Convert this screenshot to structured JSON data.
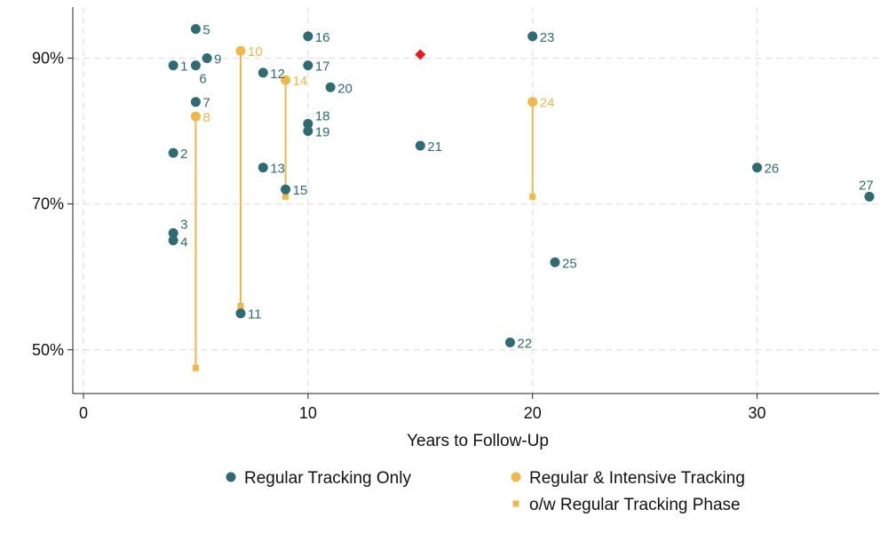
{
  "colors": {
    "regular": "#2f6b73",
    "intensive": "#f0b84a",
    "highlight": "#e8191b",
    "grid": "#e6e6e6",
    "axis": "#222222"
  },
  "chart_data": {
    "type": "scatter",
    "xlabel": "Years to Follow-Up",
    "ylabel": "",
    "xlim": [
      0,
      35
    ],
    "ylim": [
      44,
      97
    ],
    "x_ticks": [
      0,
      10,
      20,
      30
    ],
    "y_ticks": [
      50,
      70,
      90
    ],
    "y_tick_labels": [
      "50%",
      "70%",
      "90%"
    ],
    "grid": true,
    "legend_position": "bottom",
    "legend": [
      {
        "key": "regular",
        "label": "Regular Tracking Only",
        "marker": "circle"
      },
      {
        "key": "intensive",
        "label": "Regular & Intensive Tracking",
        "marker": "circle"
      },
      {
        "key": "phase",
        "label": "o/w Regular Tracking Phase",
        "marker": "square"
      }
    ],
    "regular_points": [
      {
        "id": "1",
        "x": 4,
        "y": 89
      },
      {
        "id": "2",
        "x": 4,
        "y": 77
      },
      {
        "id": "3",
        "x": 4,
        "y": 66
      },
      {
        "id": "4",
        "x": 4,
        "y": 65
      },
      {
        "id": "5",
        "x": 5,
        "y": 94
      },
      {
        "id": "6",
        "x": 5,
        "y": 89
      },
      {
        "id": "7",
        "x": 5,
        "y": 84
      },
      {
        "id": "9",
        "x": 5.5,
        "y": 90
      },
      {
        "id": "11",
        "x": 7,
        "y": 55
      },
      {
        "id": "12",
        "x": 8,
        "y": 88
      },
      {
        "id": "13",
        "x": 8,
        "y": 75
      },
      {
        "id": "15",
        "x": 9,
        "y": 72
      },
      {
        "id": "16",
        "x": 10,
        "y": 93
      },
      {
        "id": "17",
        "x": 10,
        "y": 89
      },
      {
        "id": "18",
        "x": 10,
        "y": 81
      },
      {
        "id": "19",
        "x": 10,
        "y": 80
      },
      {
        "id": "20",
        "x": 11,
        "y": 86
      },
      {
        "id": "21",
        "x": 15,
        "y": 78
      },
      {
        "id": "22",
        "x": 19,
        "y": 51
      },
      {
        "id": "23",
        "x": 20,
        "y": 93
      },
      {
        "id": "25",
        "x": 21,
        "y": 62
      },
      {
        "id": "26",
        "x": 30,
        "y": 75
      },
      {
        "id": "27",
        "x": 35,
        "y": 71
      }
    ],
    "intensive_points": [
      {
        "id": "8",
        "x": 5,
        "y": 82,
        "phase_y": 47.5
      },
      {
        "id": "10",
        "x": 7,
        "y": 91,
        "phase_y": 56
      },
      {
        "id": "14",
        "x": 9,
        "y": 87,
        "phase_y": 71
      },
      {
        "id": "24",
        "x": 20,
        "y": 84,
        "phase_y": 71
      }
    ],
    "highlight_point": {
      "x": 15,
      "y": 90.5,
      "marker": "diamond"
    }
  }
}
